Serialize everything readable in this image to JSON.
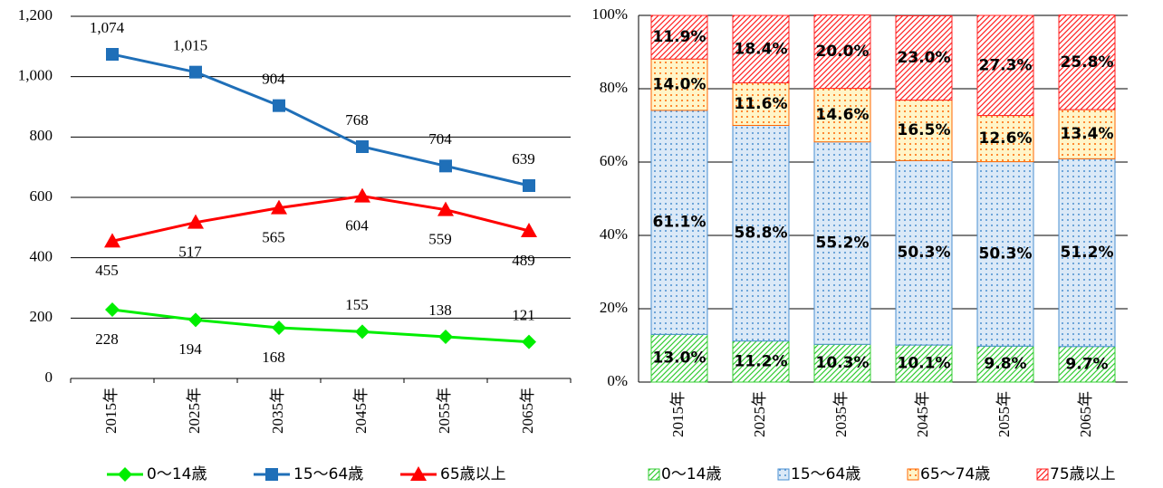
{
  "chart_data": [
    {
      "type": "line",
      "categories": [
        "2015年",
        "2025年",
        "2035年",
        "2045年",
        "2055年",
        "2065年"
      ],
      "series": [
        {
          "name": "0〜14歳",
          "color": "#00ee00",
          "values": [
            228,
            194,
            168,
            155,
            138,
            121
          ],
          "value_labels": [
            "228",
            "194",
            "168",
            "155",
            "138",
            "121"
          ]
        },
        {
          "name": "15〜64歳",
          "color": "#1f6fb8",
          "values": [
            1074,
            1015,
            904,
            768,
            704,
            639
          ],
          "value_labels": [
            "1,074",
            "1,015",
            "904",
            "768",
            "704",
            "639"
          ]
        },
        {
          "name": "65歳以上",
          "color": "#ff0000",
          "values": [
            455,
            517,
            565,
            604,
            559,
            489
          ],
          "value_labels": [
            "455",
            "517",
            "565",
            "604",
            "559",
            "489"
          ]
        }
      ],
      "ylim": [
        0,
        1200
      ],
      "yticks": [
        0,
        200,
        400,
        600,
        800,
        {
          "value": 1000,
          "label": "1,000"
        },
        {
          "value": 1200,
          "label": "1,200"
        }
      ],
      "grid": true,
      "legend": "bottom"
    },
    {
      "type": "stacked_bar",
      "categories": [
        "2015年",
        "2025年",
        "2035年",
        "2045年",
        "2055年",
        "2065年"
      ],
      "series": [
        {
          "name": "0〜14歳",
          "color": "#33cc33",
          "values": [
            13.0,
            11.2,
            10.3,
            10.1,
            9.8,
            9.7
          ],
          "value_labels": [
            "13.0%",
            "11.2%",
            "10.3%",
            "10.1%",
            "9.8%",
            "9.7%"
          ]
        },
        {
          "name": "15〜64歳",
          "color": "#4a8fd0",
          "values": [
            61.1,
            58.8,
            55.2,
            50.3,
            50.3,
            51.2
          ],
          "value_labels": [
            "61.1%",
            "58.8%",
            "55.2%",
            "50.3%",
            "50.3%",
            "51.2%"
          ]
        },
        {
          "name": "65〜74歳",
          "color": "#ff6600",
          "values": [
            14.0,
            11.6,
            14.6,
            16.5,
            12.6,
            13.4
          ],
          "value_labels": [
            "14.0%",
            "11.6%",
            "14.6%",
            "16.5%",
            "12.6%",
            "13.4%"
          ]
        },
        {
          "name": "75歳以上",
          "color": "#ff2020",
          "values": [
            11.9,
            18.4,
            20.0,
            23.0,
            27.3,
            25.8
          ],
          "value_labels": [
            "11.9%",
            "18.4%",
            "20.0%",
            "23.0%",
            "27.3%",
            "25.8%"
          ]
        }
      ],
      "ylim": [
        0,
        100
      ],
      "yticks": [
        {
          "value": 0,
          "label": "0%"
        },
        {
          "value": 20,
          "label": "20%"
        },
        {
          "value": 40,
          "label": "40%"
        },
        {
          "value": 60,
          "label": "60%"
        },
        {
          "value": 80,
          "label": "80%"
        },
        {
          "value": 100,
          "label": "100%"
        }
      ],
      "grid": true,
      "legend": "bottom"
    }
  ]
}
